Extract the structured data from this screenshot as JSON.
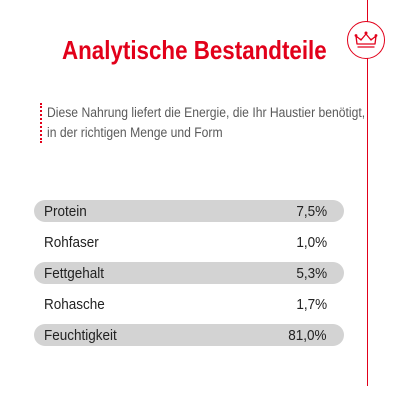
{
  "title": "Analytische Bestandteile",
  "intro": {
    "line1": "Diese Nahrung liefert die Energie, die Ihr Haustier benötigt,",
    "line2": "in der richtigen Menge und Form"
  },
  "logo": {
    "icon": "crown-icon",
    "accent_color": "#e2001a"
  },
  "nutrients": [
    {
      "label": "Protein",
      "value": "7,5%"
    },
    {
      "label": "Rohfaser",
      "value": "1,0%"
    },
    {
      "label": "Fettgehalt",
      "value": "5,3%"
    },
    {
      "label": "Rohasche",
      "value": "1,7%"
    },
    {
      "label": "Feuchtigkeit",
      "value": "81,0%"
    }
  ],
  "colors": {
    "brand_red": "#e2001a",
    "row_shade": "#d3d3d3",
    "text_gray": "#5a5a5a"
  }
}
